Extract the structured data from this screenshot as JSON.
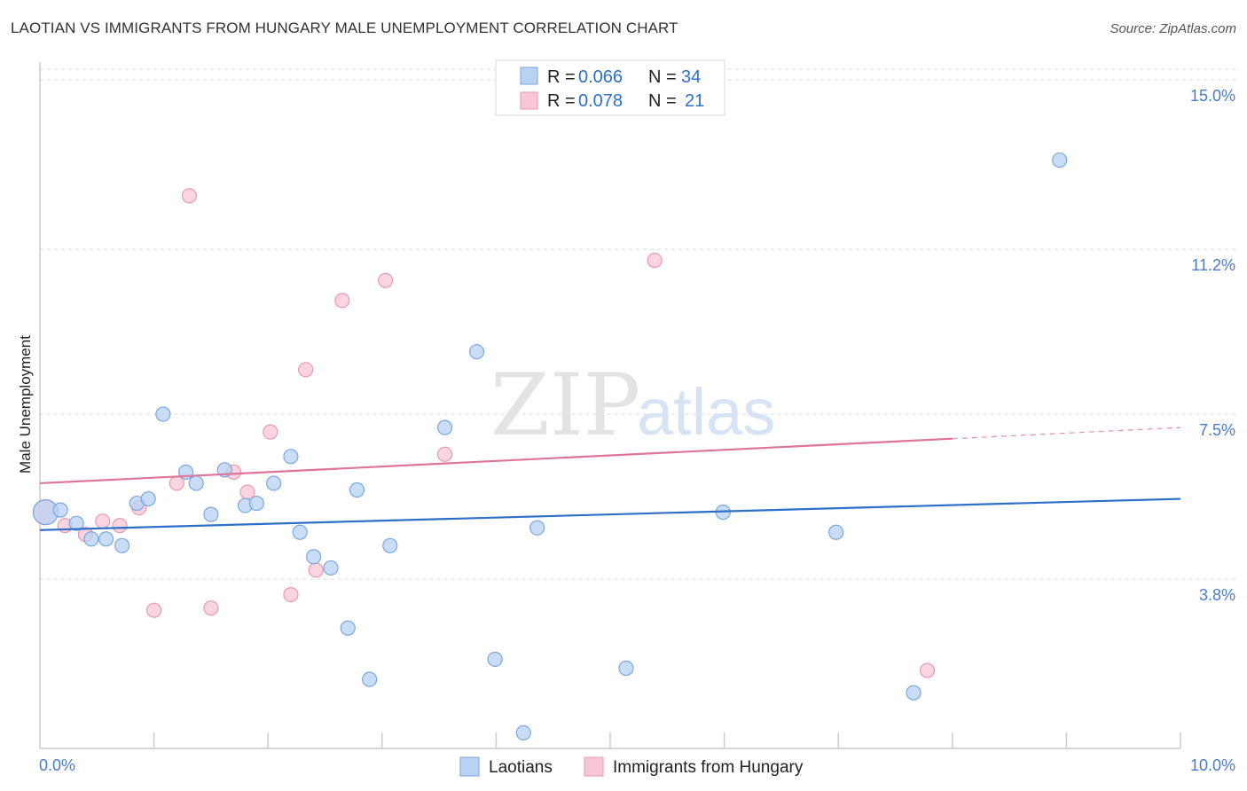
{
  "header": {
    "title": "LAOTIAN VS IMMIGRANTS FROM HUNGARY MALE UNEMPLOYMENT CORRELATION CHART",
    "source": "Source: ZipAtlas.com"
  },
  "watermark": {
    "part1": "ZIP",
    "part2": "atlas"
  },
  "colors": {
    "blue_fill": "#b8d2f4",
    "blue_stroke": "#7aa6e0",
    "blue_line": "#2d6fc8",
    "pink_fill": "#f8c6d4",
    "pink_stroke": "#e89ab2",
    "pink_line": "#e0739a",
    "grid": "#d8d8d8",
    "tick_text": "#4a7cc9"
  },
  "legend": {
    "rows": [
      {
        "r_label": "R = ",
        "r_value": "0.066",
        "n_label": "N = ",
        "n_value": "34"
      },
      {
        "r_label": "R = ",
        "r_value": "0.078",
        "n_label": "N = ",
        "n_value": "21"
      }
    ]
  },
  "chart_data": {
    "type": "scatter",
    "title": "LAOTIAN VS IMMIGRANTS FROM HUNGARY MALE UNEMPLOYMENT CORRELATION CHART",
    "xlabel": "",
    "ylabel": "Male Unemployment",
    "xlim": [
      0,
      10
    ],
    "ylim": [
      0,
      15.4
    ],
    "x_tick_labels": {
      "min": "0.0%",
      "max": "10.0%"
    },
    "y_ticks": [
      {
        "value": 3.8,
        "label": "3.8%"
      },
      {
        "value": 7.5,
        "label": "7.5%"
      },
      {
        "value": 11.2,
        "label": "11.2%"
      },
      {
        "value": 15.0,
        "label": "15.0%"
      }
    ],
    "grid": true,
    "legend_position": "bottom",
    "series": [
      {
        "name": "Laotians",
        "color": "#b8d2f4",
        "trend": {
          "x0": 0,
          "y0": 4.9,
          "x1": 10,
          "y1": 5.6,
          "dashed_from": null
        },
        "points": [
          {
            "x": 0.05,
            "y": 5.3,
            "big": true
          },
          {
            "x": 0.18,
            "y": 5.35
          },
          {
            "x": 0.32,
            "y": 5.05
          },
          {
            "x": 0.45,
            "y": 4.7
          },
          {
            "x": 0.58,
            "y": 4.7
          },
          {
            "x": 0.72,
            "y": 4.55
          },
          {
            "x": 0.85,
            "y": 5.5
          },
          {
            "x": 0.95,
            "y": 5.6
          },
          {
            "x": 1.08,
            "y": 7.5
          },
          {
            "x": 1.28,
            "y": 6.2
          },
          {
            "x": 1.37,
            "y": 5.95
          },
          {
            "x": 1.5,
            "y": 5.25
          },
          {
            "x": 1.62,
            "y": 6.25
          },
          {
            "x": 1.8,
            "y": 5.45
          },
          {
            "x": 1.9,
            "y": 5.5
          },
          {
            "x": 2.05,
            "y": 5.95
          },
          {
            "x": 2.2,
            "y": 6.55
          },
          {
            "x": 2.28,
            "y": 4.85
          },
          {
            "x": 2.4,
            "y": 4.3
          },
          {
            "x": 2.55,
            "y": 4.05
          },
          {
            "x": 2.7,
            "y": 2.7
          },
          {
            "x": 2.78,
            "y": 5.8
          },
          {
            "x": 2.89,
            "y": 1.55
          },
          {
            "x": 3.07,
            "y": 4.55
          },
          {
            "x": 3.55,
            "y": 7.2
          },
          {
            "x": 3.83,
            "y": 8.9
          },
          {
            "x": 3.99,
            "y": 2.0
          },
          {
            "x": 4.24,
            "y": 0.35
          },
          {
            "x": 4.36,
            "y": 4.95
          },
          {
            "x": 5.14,
            "y": 1.8
          },
          {
            "x": 5.99,
            "y": 5.3
          },
          {
            "x": 6.98,
            "y": 4.85
          },
          {
            "x": 7.66,
            "y": 1.25
          },
          {
            "x": 8.94,
            "y": 13.2
          }
        ]
      },
      {
        "name": "Immigrants from Hungary",
        "color": "#f8c6d4",
        "trend": {
          "x0": 0,
          "y0": 5.95,
          "x1": 10,
          "y1": 7.2,
          "dashed_from": 8.0
        },
        "points": [
          {
            "x": 0.05,
            "y": 5.3,
            "big": true
          },
          {
            "x": 0.22,
            "y": 5.0
          },
          {
            "x": 0.4,
            "y": 4.8
          },
          {
            "x": 0.55,
            "y": 5.1
          },
          {
            "x": 0.7,
            "y": 5.0
          },
          {
            "x": 0.87,
            "y": 5.4
          },
          {
            "x": 1.0,
            "y": 3.1
          },
          {
            "x": 1.2,
            "y": 5.95
          },
          {
            "x": 1.31,
            "y": 12.4
          },
          {
            "x": 1.5,
            "y": 3.15
          },
          {
            "x": 1.7,
            "y": 6.2
          },
          {
            "x": 1.82,
            "y": 5.75
          },
          {
            "x": 2.02,
            "y": 7.1
          },
          {
            "x": 2.2,
            "y": 3.45
          },
          {
            "x": 2.33,
            "y": 8.5
          },
          {
            "x": 2.42,
            "y": 4.0
          },
          {
            "x": 2.65,
            "y": 10.05
          },
          {
            "x": 3.03,
            "y": 10.5
          },
          {
            "x": 3.55,
            "y": 6.6
          },
          {
            "x": 5.39,
            "y": 10.95
          },
          {
            "x": 7.78,
            "y": 1.75
          }
        ]
      }
    ]
  }
}
